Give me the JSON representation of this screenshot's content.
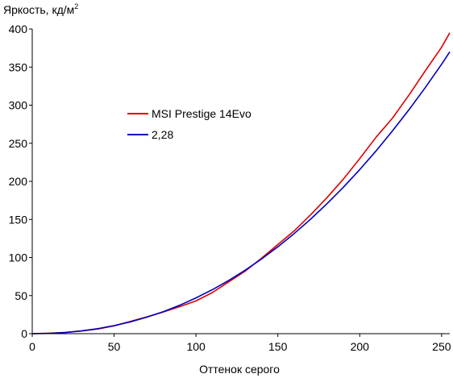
{
  "chart_data": {
    "type": "line",
    "ylabel": "Яркость, кд/м",
    "ylabel_sup": "2",
    "xlabel": "Оттенок серого",
    "xlim": [
      0,
      255
    ],
    "ylim": [
      0,
      400
    ],
    "xticks": [
      0,
      50,
      100,
      150,
      200,
      250
    ],
    "yticks": [
      0,
      50,
      100,
      150,
      200,
      250,
      300,
      350,
      400
    ],
    "grid": false,
    "legend_position": "center-left",
    "series": [
      {
        "name": "MSI Prestige 14Evo",
        "color": "#e00000",
        "x": [
          0,
          10,
          20,
          30,
          40,
          50,
          60,
          70,
          80,
          90,
          100,
          110,
          120,
          130,
          140,
          150,
          160,
          170,
          180,
          190,
          200,
          210,
          220,
          230,
          240,
          250,
          255
        ],
        "y": [
          0,
          0.6,
          1.5,
          3.5,
          6.1,
          10.3,
          16.1,
          22.0,
          28.5,
          35.5,
          43.0,
          54.0,
          68.0,
          82.0,
          99.0,
          117.0,
          135.0,
          156.0,
          178.5,
          203.0,
          230.0,
          258.0,
          283.0,
          313.0,
          345.0,
          376.0,
          395.0
        ]
      },
      {
        "name": "2,28",
        "color": "#0000c0",
        "x": [
          0,
          10,
          20,
          30,
          40,
          50,
          60,
          70,
          80,
          90,
          100,
          110,
          120,
          130,
          140,
          150,
          160,
          170,
          180,
          190,
          200,
          210,
          220,
          230,
          240,
          250,
          255
        ],
        "y": [
          0,
          0.3,
          1.5,
          3.6,
          6.6,
          10.6,
          15.6,
          21.7,
          28.9,
          37.3,
          47.0,
          57.8,
          69.9,
          83.3,
          98.0,
          114.1,
          131.5,
          150.3,
          170.6,
          192.3,
          215.4,
          240.0,
          266.2,
          293.8,
          323.0,
          353.7,
          370.0
        ]
      }
    ]
  }
}
